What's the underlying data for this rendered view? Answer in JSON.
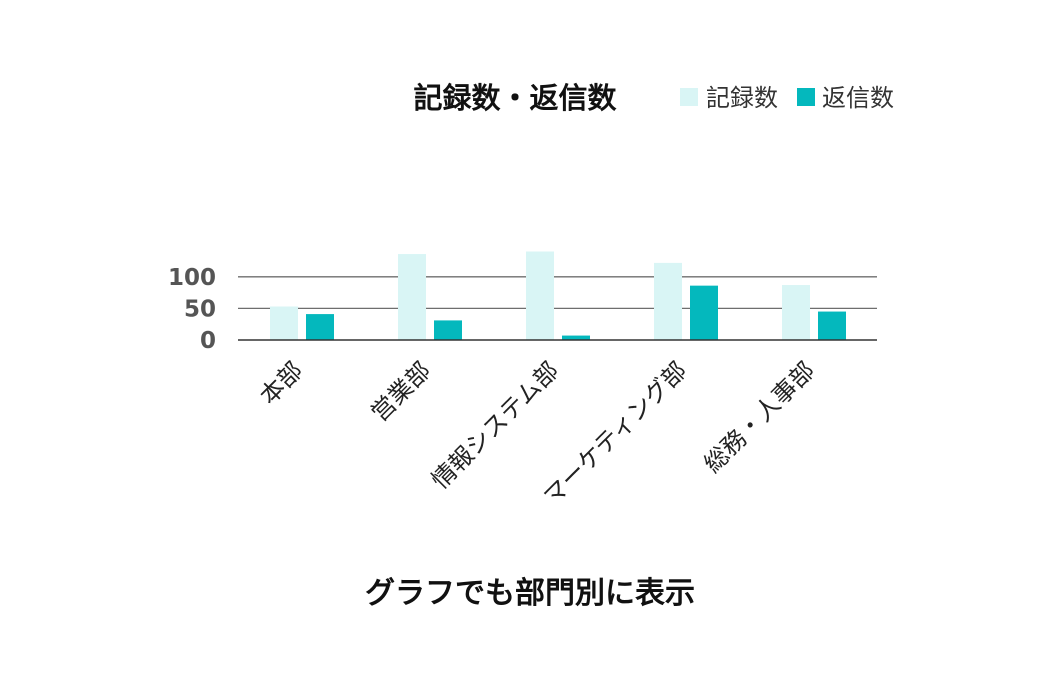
{
  "caption": "グラフでも部門別に表示",
  "chart_data": {
    "type": "bar",
    "title": "記録数・返信数",
    "categories": [
      "本部",
      "営業部",
      "情報システム部",
      "マーケティング部",
      "総務・人事部"
    ],
    "series": [
      {
        "name": "記録数",
        "values": [
          53,
          136,
          140,
          122,
          87
        ],
        "color": "#d9f5f5"
      },
      {
        "name": "返信数",
        "values": [
          41,
          31,
          7,
          86,
          45
        ],
        "color": "#04b8bd"
      }
    ],
    "yticks": [
      0,
      50,
      100
    ],
    "ylim": [
      0,
      145
    ],
    "xlabel": "",
    "ylabel": "",
    "grid": true,
    "legend": "top-right"
  }
}
